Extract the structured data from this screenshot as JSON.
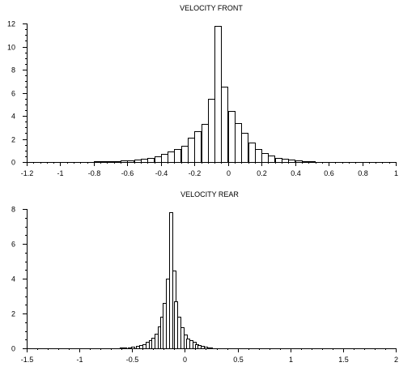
{
  "chart_data": [
    {
      "type": "bar",
      "title": "VELOCITY FRONT",
      "xlabel": "",
      "ylabel": "",
      "xlim": [
        -1.2,
        1
      ],
      "ylim": [
        0,
        12
      ],
      "x_ticks": [
        "-1.2",
        "-1",
        "-0.8",
        "-0.6",
        "-0.4",
        "-0.2",
        "0",
        "0.2",
        "0.4",
        "0.6",
        "0.8",
        "1"
      ],
      "y_ticks": [
        "0",
        "2",
        "4",
        "6",
        "8",
        "10",
        "12"
      ],
      "grid": false,
      "bin_width": 0.04,
      "bins": [
        {
          "x": -0.8,
          "y": 0.05
        },
        {
          "x": -0.76,
          "y": 0.05
        },
        {
          "x": -0.72,
          "y": 0.08
        },
        {
          "x": -0.68,
          "y": 0.1
        },
        {
          "x": -0.64,
          "y": 0.12
        },
        {
          "x": -0.6,
          "y": 0.15
        },
        {
          "x": -0.56,
          "y": 0.2
        },
        {
          "x": -0.52,
          "y": 0.25
        },
        {
          "x": -0.48,
          "y": 0.35
        },
        {
          "x": -0.44,
          "y": 0.5
        },
        {
          "x": -0.4,
          "y": 0.7
        },
        {
          "x": -0.36,
          "y": 0.9
        },
        {
          "x": -0.32,
          "y": 1.1
        },
        {
          "x": -0.28,
          "y": 1.4
        },
        {
          "x": -0.24,
          "y": 2.1
        },
        {
          "x": -0.2,
          "y": 2.7
        },
        {
          "x": -0.16,
          "y": 3.3
        },
        {
          "x": -0.12,
          "y": 5.5
        },
        {
          "x": -0.08,
          "y": 11.8
        },
        {
          "x": -0.04,
          "y": 6.5
        },
        {
          "x": 0.0,
          "y": 4.4
        },
        {
          "x": 0.04,
          "y": 3.4
        },
        {
          "x": 0.08,
          "y": 2.5
        },
        {
          "x": 0.12,
          "y": 1.7
        },
        {
          "x": 0.16,
          "y": 1.1
        },
        {
          "x": 0.2,
          "y": 0.75
        },
        {
          "x": 0.24,
          "y": 0.55
        },
        {
          "x": 0.28,
          "y": 0.35
        },
        {
          "x": 0.32,
          "y": 0.25
        },
        {
          "x": 0.36,
          "y": 0.18
        },
        {
          "x": 0.4,
          "y": 0.12
        },
        {
          "x": 0.44,
          "y": 0.08
        },
        {
          "x": 0.48,
          "y": 0.06
        }
      ]
    },
    {
      "type": "bar",
      "title": "VELOCITY REAR",
      "xlabel": "",
      "ylabel": "",
      "xlim": [
        -1.5,
        2
      ],
      "ylim": [
        0,
        8
      ],
      "x_ticks": [
        "-1.5",
        "-1",
        "-0.5",
        "0",
        "0.5",
        "1",
        "1.5",
        "2"
      ],
      "y_ticks": [
        "0",
        "2",
        "4",
        "6",
        "8"
      ],
      "grid": false,
      "bin_width": 0.027,
      "bins": [
        {
          "x": -0.62,
          "y": 0.03
        },
        {
          "x": -0.59,
          "y": 0.04
        },
        {
          "x": -0.54,
          "y": 0.06
        },
        {
          "x": -0.51,
          "y": 0.08
        },
        {
          "x": -0.46,
          "y": 0.12
        },
        {
          "x": -0.43,
          "y": 0.18
        },
        {
          "x": -0.4,
          "y": 0.25
        },
        {
          "x": -0.37,
          "y": 0.35
        },
        {
          "x": -0.34,
          "y": 0.45
        },
        {
          "x": -0.32,
          "y": 0.6
        },
        {
          "x": -0.29,
          "y": 0.85
        },
        {
          "x": -0.26,
          "y": 1.25
        },
        {
          "x": -0.23,
          "y": 1.8
        },
        {
          "x": -0.21,
          "y": 2.6
        },
        {
          "x": -0.18,
          "y": 4.0
        },
        {
          "x": -0.15,
          "y": 7.8
        },
        {
          "x": -0.12,
          "y": 4.45
        },
        {
          "x": -0.1,
          "y": 2.7
        },
        {
          "x": -0.07,
          "y": 1.8
        },
        {
          "x": -0.04,
          "y": 1.2
        },
        {
          "x": -0.01,
          "y": 0.8
        },
        {
          "x": 0.01,
          "y": 0.55
        },
        {
          "x": 0.04,
          "y": 0.45
        },
        {
          "x": 0.07,
          "y": 0.35
        },
        {
          "x": 0.1,
          "y": 0.25
        },
        {
          "x": 0.12,
          "y": 0.18
        },
        {
          "x": 0.15,
          "y": 0.12
        },
        {
          "x": 0.18,
          "y": 0.08
        },
        {
          "x": 0.21,
          "y": 0.05
        },
        {
          "x": 0.23,
          "y": 0.04
        }
      ]
    }
  ]
}
